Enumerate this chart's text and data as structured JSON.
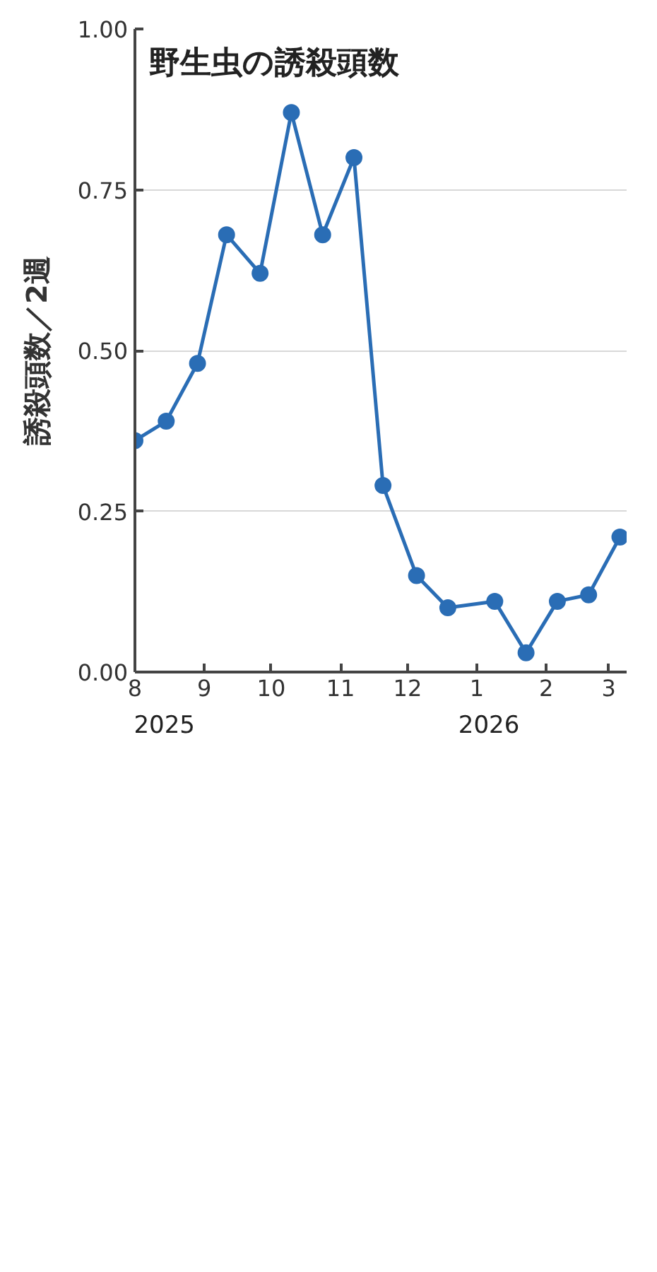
{
  "chart_data": {
    "type": "line",
    "title": "野生虫の誘殺頭数",
    "ylabel": "誘殺頭数／2週",
    "x": [
      "2025-08-01",
      "2025-08-15",
      "2025-08-29",
      "2025-09-11",
      "2025-09-26",
      "2025-10-10",
      "2025-10-24",
      "2025-11-07",
      "2025-11-20",
      "2025-12-05",
      "2025-12-19",
      "2026-01-09",
      "2026-01-23",
      "2026-02-06",
      "2026-02-20",
      "2026-03-06"
    ],
    "series": [
      {
        "color": "#2a6db5",
        "values": [
          0.36,
          0.39,
          0.48,
          0.68,
          0.62,
          0.87,
          0.68,
          0.8,
          0.29,
          0.15,
          0.1,
          0.11,
          0.03,
          0.11,
          0.12,
          0.21
        ]
      }
    ],
    "xlim": [
      "2025-08-01",
      "2026-03-09"
    ],
    "xticks": [
      {
        "value": "2025-08-01",
        "label": "8"
      },
      {
        "value": "2025-09-01",
        "label": "9"
      },
      {
        "value": "2025-10-01",
        "label": "10"
      },
      {
        "value": "2025-11-01",
        "label": "11"
      },
      {
        "value": "2025-12-01",
        "label": "12"
      },
      {
        "value": "2026-01-01",
        "label": "1"
      },
      {
        "value": "2026-02-01",
        "label": "2"
      },
      {
        "value": "2026-03-01",
        "label": "3"
      }
    ],
    "ylim": [
      0,
      1
    ],
    "yticks": [
      {
        "value": 0,
        "label": "0.00"
      },
      {
        "value": 0.25,
        "label": "0.25"
      },
      {
        "value": 0.5,
        "label": "0.50"
      },
      {
        "value": 0.75,
        "label": "0.75"
      },
      {
        "value": 1,
        "label": "1.00"
      }
    ],
    "annotations": [
      "2025",
      "2026"
    ],
    "grid": "y",
    "marker": "circle",
    "line_style": "solid"
  }
}
